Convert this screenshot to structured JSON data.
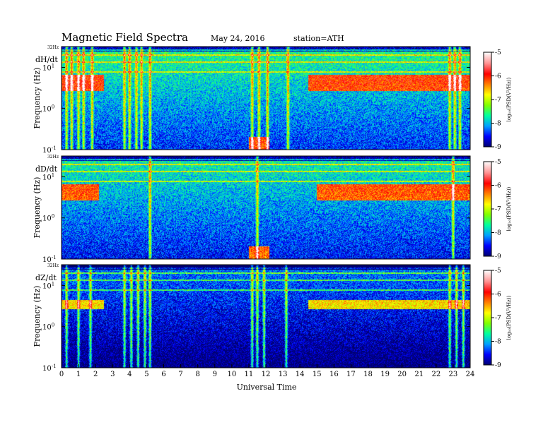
{
  "header": {
    "title": "Magnetic Field Spectra",
    "date": "May 24, 2016",
    "station": "station=ATH"
  },
  "chart_data": {
    "type": "heatmap",
    "xlabel": "Universal Time",
    "x_ticks": [
      "0",
      "1",
      "2",
      "3",
      "4",
      "5",
      "6",
      "7",
      "8",
      "9",
      "10",
      "11",
      "12",
      "13",
      "14",
      "15",
      "16",
      "17",
      "18",
      "19",
      "20",
      "21",
      "22",
      "23",
      "24"
    ],
    "xlim": [
      0,
      24
    ],
    "ylabel": "Frequency (Hz)",
    "y_scale": "log",
    "ylim": [
      0.1,
      32
    ],
    "y_top_label": "32Hz",
    "y_tick_labels": [
      {
        "base": "10",
        "exp": "-1",
        "value": 0.1
      },
      {
        "base": "10",
        "exp": "0",
        "value": 1
      },
      {
        "base": "10",
        "exp": "1",
        "value": 10
      }
    ],
    "colorbar": {
      "label": "log₁₀(PSD(V²/Hz))",
      "ticks": [
        "-5",
        "-6",
        "-7",
        "-8",
        "-9"
      ],
      "range": [
        -9,
        -5
      ],
      "colors": [
        "#000070",
        "#0000ff",
        "#00a0ff",
        "#00ffa0",
        "#80ff00",
        "#ffff00",
        "#ff8000",
        "#ff0000",
        "#ff9090",
        "#ffffff"
      ]
    },
    "panels": [
      {
        "name": "dH/dt",
        "background_level": -8.0,
        "persistent_lines_hz": [
          7.8,
          13.5,
          20,
          26
        ],
        "resonance_band_hz": [
          2.7,
          6.5
        ],
        "resonance_band_hours": [
          [
            0,
            2.5
          ],
          [
            14.5,
            24
          ]
        ],
        "broadband_bursts_ut": [
          0.3,
          0.6,
          1.0,
          1.3,
          1.8,
          3.7,
          4.0,
          4.4,
          4.7,
          5.2,
          11.2,
          11.6,
          12.1,
          13.3,
          22.8,
          23.1,
          23.4
        ],
        "low_freq_enhancement_ut": [
          11.0,
          12.2
        ]
      },
      {
        "name": "dD/dt",
        "background_level": -8.1,
        "persistent_lines_hz": [
          7.8,
          13.5,
          20,
          26
        ],
        "resonance_band_hz": [
          2.7,
          6.5
        ],
        "resonance_band_hours": [
          [
            0,
            2.2
          ],
          [
            15.0,
            24
          ]
        ],
        "broadband_bursts_ut": [
          5.2,
          11.5,
          23.0
        ],
        "low_freq_enhancement_ut": [
          11.0,
          12.2
        ]
      },
      {
        "name": "dZ/dt",
        "background_level": -8.6,
        "persistent_lines_hz": [
          7.8,
          13.5,
          20,
          26
        ],
        "resonance_band_hz": [
          2.7,
          4.5
        ],
        "resonance_band_hours": [
          [
            0,
            2.5
          ],
          [
            14.5,
            24
          ]
        ],
        "broadband_bursts_ut": [
          0.3,
          1.0,
          1.7,
          3.7,
          4.1,
          4.5,
          4.9,
          5.2,
          11.2,
          11.5,
          11.9,
          13.2,
          22.8,
          23.2,
          23.6
        ],
        "low_freq_enhancement_ut": []
      }
    ]
  }
}
